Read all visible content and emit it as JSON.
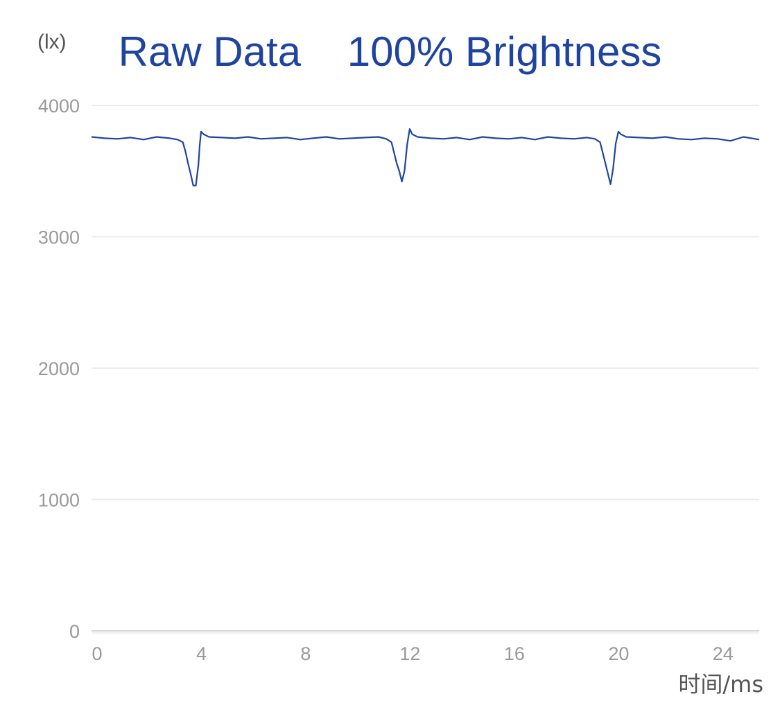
{
  "chart_data": {
    "type": "line",
    "title": "Raw Data    100% Brightness",
    "ylabel": "(lx)",
    "xlabel": "时间/ms",
    "xlim": [
      0,
      25.6
    ],
    "ylim": [
      0,
      4000
    ],
    "x_ticks": [
      0,
      4,
      8,
      12,
      16,
      20,
      24
    ],
    "y_ticks": [
      0,
      1000,
      2000,
      3000,
      4000
    ],
    "grid": true,
    "series": [
      {
        "color": "#1f44a0",
        "x": [
          0,
          0.5,
          1,
          1.5,
          2,
          2.5,
          3,
          3.3,
          3.5,
          3.6,
          3.7,
          3.8,
          3.9,
          4.0,
          4.1,
          4.15,
          4.2,
          4.3,
          4.5,
          5,
          5.5,
          6,
          6.5,
          7,
          7.5,
          8,
          8.5,
          9,
          9.5,
          10,
          10.5,
          11,
          11.3,
          11.5,
          11.6,
          11.7,
          11.8,
          11.9,
          12.0,
          12.1,
          12.2,
          12.3,
          12.5,
          13,
          13.5,
          14,
          14.5,
          15,
          15.5,
          16,
          16.5,
          17,
          17.5,
          18,
          18.5,
          19,
          19.3,
          19.5,
          19.6,
          19.7,
          19.8,
          19.9,
          20.0,
          20.1,
          20.2,
          20.3,
          20.5,
          21,
          21.5,
          22,
          22.5,
          23,
          23.5,
          24,
          24.5,
          25,
          25.6
        ],
        "y": [
          3760,
          3750,
          3745,
          3755,
          3740,
          3760,
          3750,
          3740,
          3720,
          3650,
          3560,
          3480,
          3390,
          3390,
          3550,
          3700,
          3800,
          3780,
          3760,
          3755,
          3750,
          3760,
          3745,
          3750,
          3755,
          3740,
          3750,
          3760,
          3745,
          3750,
          3755,
          3760,
          3745,
          3720,
          3640,
          3560,
          3500,
          3420,
          3500,
          3700,
          3820,
          3780,
          3760,
          3750,
          3745,
          3755,
          3740,
          3760,
          3750,
          3745,
          3755,
          3740,
          3760,
          3750,
          3745,
          3755,
          3745,
          3720,
          3640,
          3560,
          3480,
          3400,
          3520,
          3710,
          3800,
          3780,
          3760,
          3755,
          3750,
          3760,
          3745,
          3740,
          3750,
          3745,
          3730,
          3760,
          3740
        ]
      }
    ]
  }
}
